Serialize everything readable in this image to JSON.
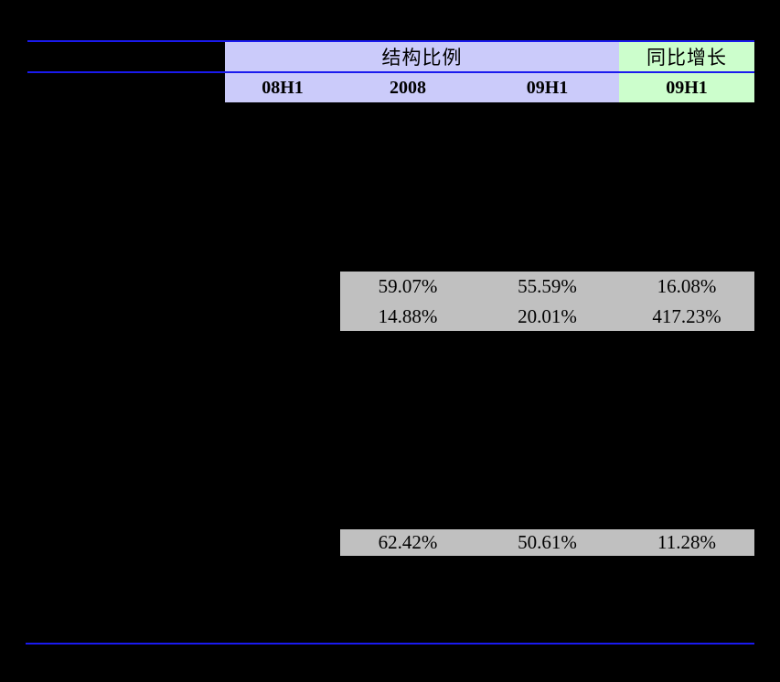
{
  "colors": {
    "background": "#000000",
    "rule_blue": "#1a1aee",
    "header_purple": "#cbcbfa",
    "header_green": "#ccfecc",
    "data_gray": "#c0c0c0",
    "text": "#000000"
  },
  "table": {
    "group_headers": [
      {
        "label": "结构比例"
      },
      {
        "label": "同比增长"
      }
    ],
    "column_headers": [
      "08H1",
      "2008",
      "09H1",
      "09H1"
    ],
    "block1": {
      "rows": [
        {
          "cells": [
            "59.07%",
            "55.59%",
            "16.08%"
          ]
        },
        {
          "cells": [
            "14.88%",
            "20.01%",
            "417.23%"
          ]
        }
      ]
    },
    "block2": {
      "rows": [
        {
          "cells": [
            "62.42%",
            "50.61%",
            "11.28%"
          ]
        }
      ]
    }
  }
}
